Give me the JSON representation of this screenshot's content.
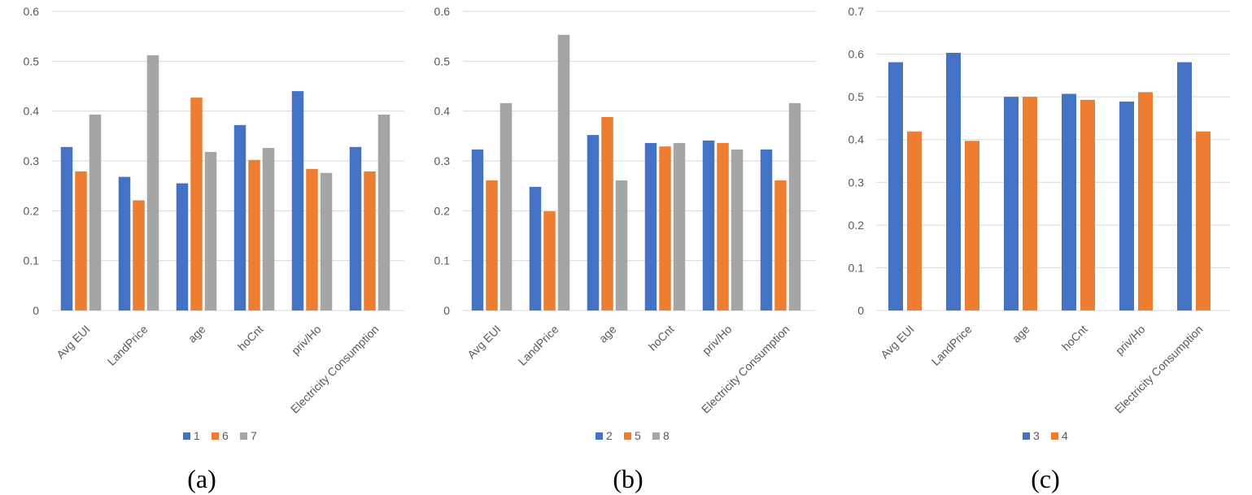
{
  "chart_data": [
    {
      "type": "bar",
      "panel_label": "(a)",
      "categories": [
        "Avg EUI",
        "LandPrice",
        "age",
        "hoCnt",
        "priv/Ho",
        "Electricity Consumption"
      ],
      "ylim": [
        0,
        0.6
      ],
      "yticks": [
        "0",
        "0.1",
        "0.2",
        "0.3",
        "0.4",
        "0.5",
        "0.6"
      ],
      "grid": true,
      "legend_position": "bottom",
      "series": [
        {
          "name": "1",
          "color": "#4472c4",
          "values": [
            0.328,
            0.268,
            0.255,
            0.372,
            0.44,
            0.328
          ]
        },
        {
          "name": "6",
          "color": "#ed7d31",
          "values": [
            0.279,
            0.221,
            0.427,
            0.302,
            0.284,
            0.279
          ]
        },
        {
          "name": "7",
          "color": "#a5a5a5",
          "values": [
            0.393,
            0.512,
            0.318,
            0.326,
            0.276,
            0.393
          ]
        }
      ]
    },
    {
      "type": "bar",
      "panel_label": "(b)",
      "categories": [
        "Avg EUI",
        "LandPrice",
        "age",
        "hoCnt",
        "priv/Ho",
        "Electricity Consumption"
      ],
      "ylim": [
        0,
        0.6
      ],
      "yticks": [
        "0",
        "0.1",
        "0.2",
        "0.3",
        "0.4",
        "0.5",
        "0.6"
      ],
      "grid": true,
      "legend_position": "bottom",
      "series": [
        {
          "name": "2",
          "color": "#4472c4",
          "values": [
            0.323,
            0.248,
            0.352,
            0.336,
            0.341,
            0.323
          ]
        },
        {
          "name": "5",
          "color": "#ed7d31",
          "values": [
            0.261,
            0.199,
            0.388,
            0.329,
            0.336,
            0.261
          ]
        },
        {
          "name": "8",
          "color": "#a5a5a5",
          "values": [
            0.416,
            0.553,
            0.261,
            0.336,
            0.323,
            0.416
          ]
        }
      ]
    },
    {
      "type": "bar",
      "panel_label": "(c)",
      "categories": [
        "Avg EUI",
        "LandPrice",
        "age",
        "hoCnt",
        "priv/Ho",
        "Electricity Consumption"
      ],
      "ylim": [
        0,
        0.7
      ],
      "yticks": [
        "0",
        "0.1",
        "0.2",
        "0.3",
        "0.4",
        "0.5",
        "0.6",
        "0.7"
      ],
      "grid": true,
      "legend_position": "bottom",
      "series": [
        {
          "name": "3",
          "color": "#4472c4",
          "values": [
            0.581,
            0.603,
            0.5,
            0.507,
            0.489,
            0.581
          ]
        },
        {
          "name": "4",
          "color": "#ed7d31",
          "values": [
            0.419,
            0.397,
            0.5,
            0.493,
            0.511,
            0.419
          ]
        }
      ]
    }
  ]
}
